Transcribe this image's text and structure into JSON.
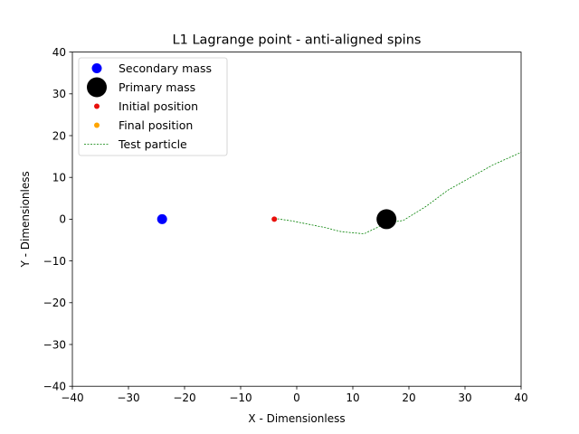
{
  "chart_data": {
    "type": "scatter",
    "title": "L1 Lagrange point - anti-aligned spins",
    "xlabel": "X - Dimensionless",
    "ylabel": "Y - Dimensionless",
    "xlim": [
      -40,
      40
    ],
    "ylim": [
      -40,
      40
    ],
    "xticks": [
      -40,
      -30,
      -20,
      -10,
      0,
      10,
      20,
      30,
      40
    ],
    "yticks": [
      -40,
      -30,
      -20,
      -10,
      0,
      10,
      20,
      30,
      40
    ],
    "xtick_labels": [
      "−40",
      "−30",
      "−20",
      "−10",
      "0",
      "10",
      "20",
      "30",
      "40"
    ],
    "ytick_labels": [
      "−40",
      "−30",
      "−20",
      "−10",
      "0",
      "10",
      "20",
      "30",
      "40"
    ],
    "grid": false,
    "legend_position": "upper-left",
    "series": [
      {
        "name": "Secondary mass",
        "kind": "marker",
        "color": "#0000ff",
        "marker_size": 5.5,
        "points": [
          [
            -24,
            0
          ]
        ]
      },
      {
        "name": "Primary mass",
        "kind": "marker",
        "color": "#000000",
        "marker_size": 11,
        "points": [
          [
            16,
            0
          ]
        ]
      },
      {
        "name": "Initial position",
        "kind": "marker",
        "color": "#e8100c",
        "marker_size": 3,
        "points": [
          [
            -4,
            0
          ]
        ]
      },
      {
        "name": "Final position",
        "kind": "marker",
        "color": "#ffa500",
        "marker_size": 3,
        "points": []
      },
      {
        "name": "Test particle",
        "kind": "line",
        "color": "#008000",
        "dash": "2,1.5",
        "points": [
          [
            -4,
            0.2
          ],
          [
            -1,
            -0.4
          ],
          [
            2,
            -1.2
          ],
          [
            5,
            -2
          ],
          [
            8,
            -3
          ],
          [
            12,
            -3.5
          ],
          [
            14,
            -2.2
          ],
          [
            16,
            -0.9
          ],
          [
            19,
            -0.3
          ],
          [
            23,
            3
          ],
          [
            27,
            7
          ],
          [
            31,
            10
          ],
          [
            35,
            13
          ],
          [
            40,
            16
          ]
        ]
      }
    ]
  }
}
